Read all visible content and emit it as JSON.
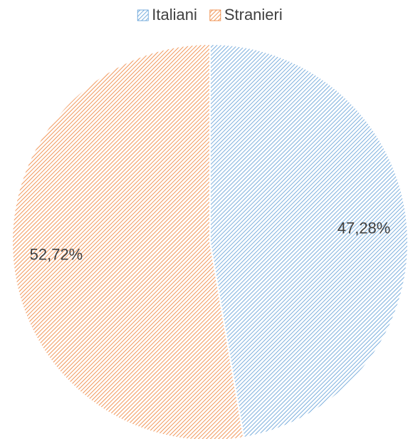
{
  "chart_data": {
    "type": "pie",
    "categories": [
      "Italiani",
      "Stranieri"
    ],
    "values": [
      47.28,
      52.72
    ],
    "value_labels": [
      "47,28%",
      "52,72%"
    ],
    "colors": [
      "#5b9bd5",
      "#ed7d31"
    ],
    "legend": "top"
  }
}
